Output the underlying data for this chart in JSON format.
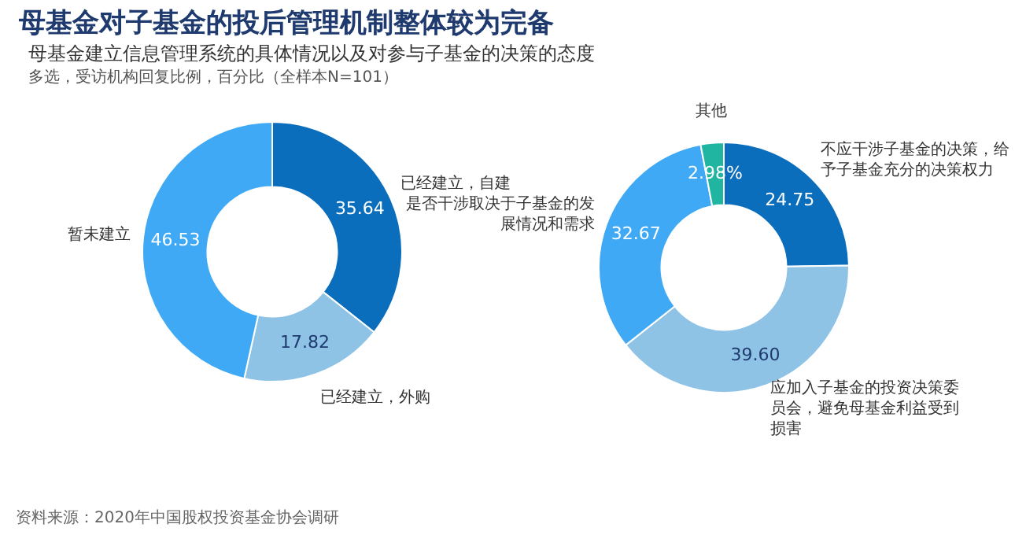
{
  "chart_data": [
    {
      "type": "donut",
      "title": "母基金对子基金的投后管理机制整体较为完备",
      "subtitle": "母基金建立信息管理系统的具体情况以及对参与子基金的决策的态度",
      "annotations": [
        "多选，受访机构回复比例，百分比（全样本N=101）",
        "资料来源：2020年中国股权投资基金协会调研"
      ],
      "categories": [
        "已经建立，自建",
        "已经建立，外购",
        "暂未建立"
      ],
      "values": [
        35.64,
        17.82,
        46.53
      ],
      "colors": [
        "#0a6ebd",
        "#8ec3e6",
        "#3fa9f5"
      ],
      "data_labels": true
    },
    {
      "type": "donut",
      "categories": [
        "不应干涉子基金的决策，给予子基金充分的决策权力",
        "应加入子基金的投资决策委员会，避免母基金利益受到损害",
        "是否干涉取决于子基金的发展情况和需求",
        "其他"
      ],
      "values": [
        24.75,
        39.6,
        32.67,
        2.98
      ],
      "value_labels": [
        "24.75",
        "39.60",
        "32.67",
        "2.98%"
      ],
      "colors": [
        "#0a6ebd",
        "#8ec3e6",
        "#3fa9f5",
        "#1fb5a0"
      ]
    }
  ]
}
